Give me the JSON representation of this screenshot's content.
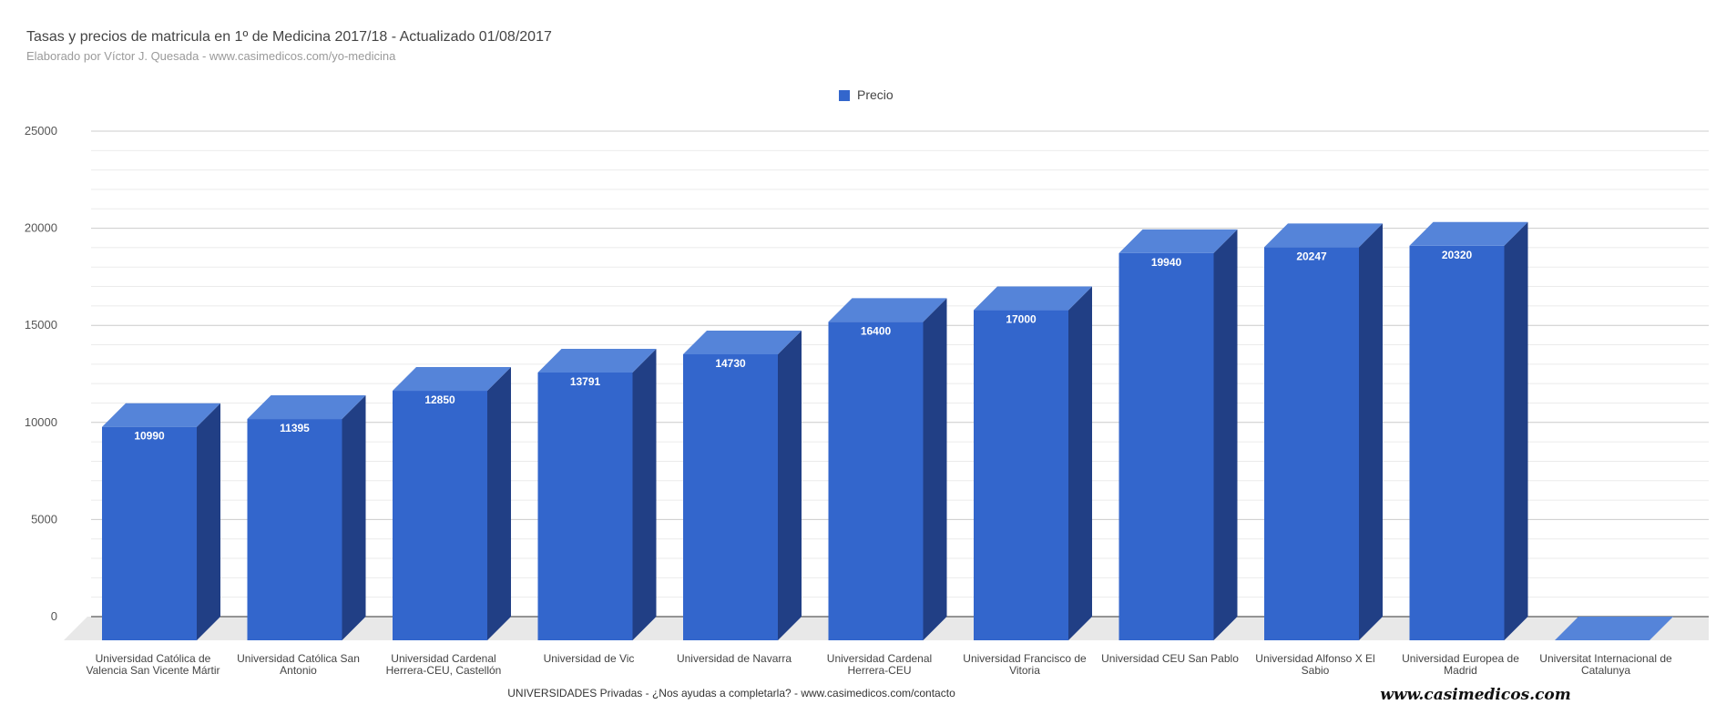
{
  "chart_data": {
    "type": "bar",
    "title": "Tasas y precios de matricula en 1º de Medicina 2017/18 - Actualizado 01/08/2017",
    "subtitle": "Elaborado por Víctor J. Quesada - www.casimedicos.com/yo-medicina",
    "xlabel": "UNIVERSIDADES  Privadas - ¿Nos ayudas a completarla? - www.casimedicos.com/contacto",
    "ylabel": "",
    "ylim": [
      0,
      25000
    ],
    "yticks": [
      0,
      5000,
      10000,
      15000,
      20000,
      25000
    ],
    "grid": true,
    "legend_position": "top-center",
    "three_d": true,
    "categories": [
      [
        "Universidad Católica de",
        "Valencia San Vicente Mártir"
      ],
      [
        "Universidad Católica San",
        "Antonio"
      ],
      [
        "Universidad Cardenal",
        "Herrera-CEU, Castellón"
      ],
      [
        "Universidad de Vic"
      ],
      [
        "Universidad de Navarra"
      ],
      [
        "Universidad Cardenal",
        "Herrera-CEU"
      ],
      [
        "Universidad Francisco de",
        "Vitoria"
      ],
      [
        "Universidad CEU San Pablo"
      ],
      [
        "Universidad Alfonso X El",
        "Sabio"
      ],
      [
        "Universidad Europea de",
        "Madrid"
      ],
      [
        "Universitat Internacional de",
        "Catalunya"
      ]
    ],
    "series": [
      {
        "name": "Precio",
        "color": "#3366cc",
        "values": [
          10990,
          11395,
          12850,
          13791,
          14730,
          16400,
          17000,
          19940,
          20247,
          20320,
          0
        ],
        "data_labels": [
          "10990",
          "11395",
          "12850",
          "13791",
          "14730",
          "16400",
          "17000",
          "19940",
          "20247",
          "20320",
          ""
        ]
      }
    ]
  },
  "watermark": "www.casimedicos.com",
  "colors": {
    "bar_front": "#3366cc",
    "bar_top": "#5584d9",
    "bar_side": "#213f85",
    "floor": "#e8e8e8",
    "grid_major": "#cccccc",
    "grid_minor": "#ebebeb"
  }
}
